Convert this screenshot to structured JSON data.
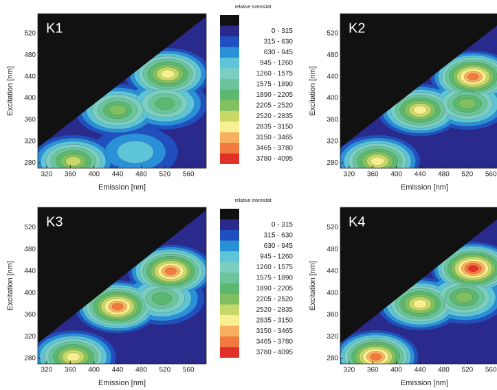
{
  "chart_data": [
    {
      "type": "contour",
      "title": "K1",
      "x_label": "Emission [nm]",
      "y_label": "Excitation [nm]",
      "xlim": [
        305,
        590
      ],
      "ylim": [
        270,
        557
      ],
      "xticks": [
        320,
        360,
        400,
        440,
        480,
        520,
        560
      ],
      "yticks": [
        280,
        320,
        360,
        400,
        440,
        480,
        520
      ],
      "peaks": [
        {
          "x": 525,
          "y": 445,
          "z": 3000
        },
        {
          "x": 440,
          "y": 378,
          "z": 2500
        },
        {
          "x": 520,
          "y": 390,
          "z": 2100
        },
        {
          "x": 365,
          "y": 283,
          "z": 2600
        },
        {
          "x": 470,
          "y": 300,
          "z": 1100
        }
      ]
    },
    {
      "type": "contour",
      "title": "K2",
      "x_label": "Emission [nm]",
      "y_label": "Excitation [nm]",
      "xlim": [
        305,
        590
      ],
      "ylim": [
        270,
        557
      ],
      "xticks": [
        320,
        360,
        400,
        440,
        480,
        520,
        560
      ],
      "yticks": [
        280,
        320,
        360,
        400,
        440,
        480,
        520
      ],
      "peaks": [
        {
          "x": 530,
          "y": 440,
          "z": 3600
        },
        {
          "x": 440,
          "y": 378,
          "z": 2900
        },
        {
          "x": 520,
          "y": 390,
          "z": 2300
        },
        {
          "x": 368,
          "y": 283,
          "z": 2900
        }
      ]
    },
    {
      "type": "contour",
      "title": "K3",
      "x_label": "Emission [nm]",
      "y_label": "Excitation [nm]",
      "xlim": [
        305,
        590
      ],
      "ylim": [
        270,
        557
      ],
      "xticks": [
        320,
        360,
        400,
        440,
        480,
        520,
        560
      ],
      "yticks": [
        280,
        320,
        360,
        400,
        440,
        480,
        520
      ],
      "peaks": [
        {
          "x": 530,
          "y": 440,
          "z": 3700
        },
        {
          "x": 440,
          "y": 375,
          "z": 3500
        },
        {
          "x": 515,
          "y": 390,
          "z": 2200
        },
        {
          "x": 365,
          "y": 283,
          "z": 3100
        }
      ]
    },
    {
      "type": "contour",
      "title": "K4",
      "x_label": "Emission [nm]",
      "y_label": "Excitation [nm]",
      "xlim": [
        305,
        590
      ],
      "ylim": [
        270,
        557
      ],
      "xticks": [
        320,
        360,
        400,
        440,
        480,
        520,
        560
      ],
      "yticks": [
        280,
        320,
        360,
        400,
        440,
        480,
        520
      ],
      "peaks": [
        {
          "x": 530,
          "y": 445,
          "z": 3900
        },
        {
          "x": 440,
          "y": 380,
          "z": 2900
        },
        {
          "x": 515,
          "y": 392,
          "z": 2300
        },
        {
          "x": 365,
          "y": 283,
          "z": 3600
        }
      ]
    }
  ],
  "legends": [
    {
      "title": "relative Intensität",
      "entries": [
        {
          "label": "0 - 315",
          "color": "#2a2a8c"
        },
        {
          "label": "315 - 630",
          "color": "#2050c0"
        },
        {
          "label": "630 - 945",
          "color": "#2a90d8"
        },
        {
          "label": "945 - 1260",
          "color": "#5ec4d8"
        },
        {
          "label": "1260 - 1575",
          "color": "#7ccfc0"
        },
        {
          "label": "1575 - 1890",
          "color": "#6cc49a"
        },
        {
          "label": "1890 - 2205",
          "color": "#5cb870"
        },
        {
          "label": "2205 - 2520",
          "color": "#80c060"
        },
        {
          "label": "2520 - 2835",
          "color": "#c8d868"
        },
        {
          "label": "2835 - 3150",
          "color": "#f8f090"
        },
        {
          "label": "3150 - 3465",
          "color": "#f8b060"
        },
        {
          "label": "3465 - 3780",
          "color": "#f07a40"
        },
        {
          "label": "3780 - 4095",
          "color": "#e03028"
        }
      ]
    },
    {
      "title": "relative Intensität",
      "entries": [
        {
          "label": "0 - 315",
          "color": "#2a2a8c"
        },
        {
          "label": "315 - 630",
          "color": "#2050c0"
        },
        {
          "label": "630 - 945",
          "color": "#2a90d8"
        },
        {
          "label": "945 - 1260",
          "color": "#5ec4d8"
        },
        {
          "label": "1260 - 1575",
          "color": "#7ccfc0"
        },
        {
          "label": "1575 - 1890",
          "color": "#6cc49a"
        },
        {
          "label": "1890 - 2205",
          "color": "#5cb870"
        },
        {
          "label": "2205 - 2520",
          "color": "#80c060"
        },
        {
          "label": "2520 - 2835",
          "color": "#c8d868"
        },
        {
          "label": "2835 - 3150",
          "color": "#f8f090"
        },
        {
          "label": "3150 - 3465",
          "color": "#f8b060"
        },
        {
          "label": "3465 - 3780",
          "color": "#f07a40"
        },
        {
          "label": "3780 - 4095",
          "color": "#e03028"
        }
      ]
    }
  ]
}
